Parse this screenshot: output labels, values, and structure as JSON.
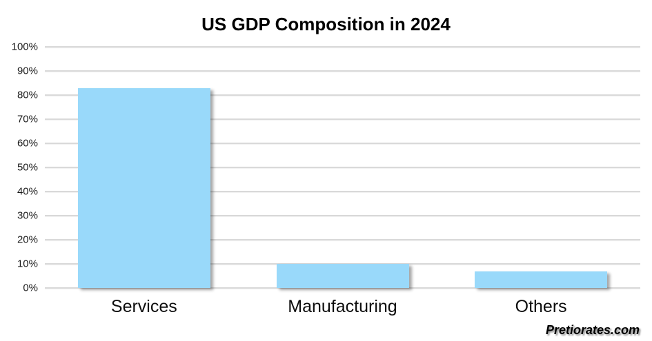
{
  "watermark": "Pretiorates.com",
  "colors": {
    "bar_fill": "#99d9fa",
    "gridline": "#d9d9d9",
    "title_text": "#000000",
    "axis_text": "#1a1a1a"
  },
  "chart_data": {
    "type": "bar",
    "title": "US GDP Composition in 2024",
    "categories": [
      "Services",
      "Manufacturing",
      "Others"
    ],
    "values": [
      83,
      10,
      7
    ],
    "unit": "%",
    "xlabel": "",
    "ylabel": "",
    "ylim": [
      0,
      100
    ],
    "y_tick_step": 10,
    "y_tick_labels": [
      "0%",
      "10%",
      "20%",
      "30%",
      "40%",
      "50%",
      "60%",
      "70%",
      "80%",
      "90%",
      "100%"
    ],
    "grid": "horizontal",
    "legend_position": "none"
  }
}
